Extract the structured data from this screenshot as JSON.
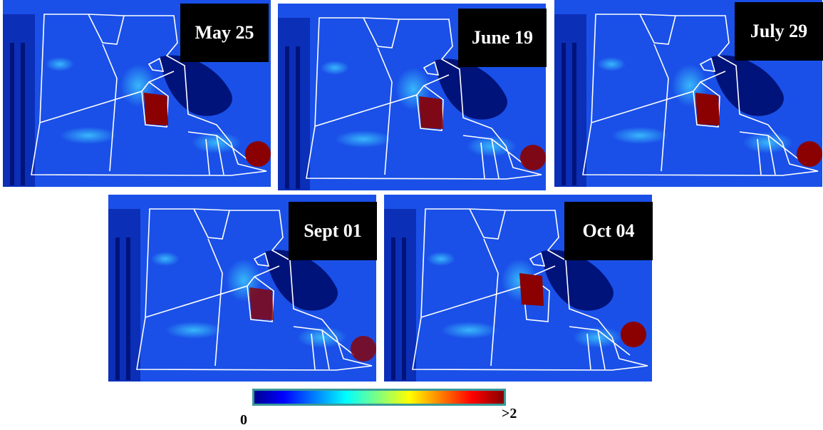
{
  "panels": [
    {
      "label": "May 25"
    },
    {
      "label": "June 19"
    },
    {
      "label": "July 29"
    },
    {
      "label": "Sept 01"
    },
    {
      "label": "Oct 04"
    }
  ],
  "colorbar": {
    "min_label": "0",
    "max_label": ">2"
  }
}
